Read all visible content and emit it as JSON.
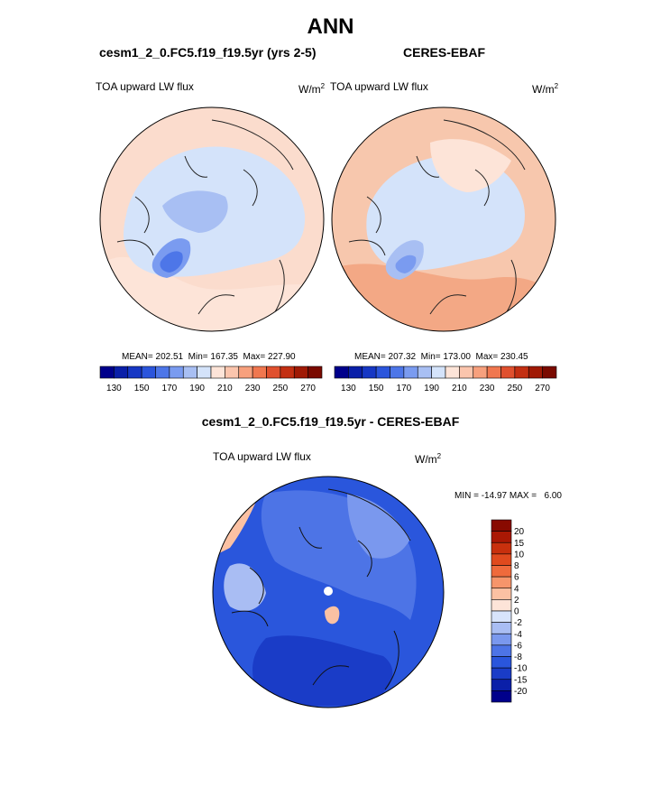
{
  "page": {
    "title": "ANN",
    "panel_left_title": "cesm1_2_0.FC5.f19_f19.5yr (yrs 2-5)",
    "panel_right_title": "CERES-EBAF",
    "panel_diff_title": "cesm1_2_0.FC5.f19_f19.5yr - CERES-EBAF"
  },
  "colors": {
    "seq_palette": [
      "#00008b",
      "#0a1fa8",
      "#1637c4",
      "#2b55dc",
      "#4d76e8",
      "#7a9bf0",
      "#a8bff3",
      "#d4e3fa",
      "#fde4d8",
      "#fbc5ad",
      "#f7a07d",
      "#f0774f",
      "#e0502e",
      "#c32f12",
      "#a01a05",
      "#7a0a00"
    ],
    "diff_palette": [
      "#00008b",
      "#0a1fa8",
      "#1a3cc7",
      "#2a56dc",
      "#4d74e6",
      "#7a98ee",
      "#a9bdf3",
      "#d8e4fb",
      "#fde4d8",
      "#fbc1a3",
      "#f6956b",
      "#ef6a3c",
      "#e04a1e",
      "#c8300d",
      "#aa1804",
      "#880a00"
    ],
    "map_bg_left": "#fbdccd",
    "map_bg_right": "#f7c7ad"
  },
  "chart_data": [
    {
      "type": "heatmap",
      "projection": "polar-stereographic-north",
      "panel_title": "cesm1_2_0.FC5.f19_f19.5yr (yrs 2-5)",
      "left_label": "TOA upward LW flux",
      "units_main": "W/m",
      "units_sup": "2",
      "stats_text": "MEAN= 202.51  Min= 167.35  Max= 227.90",
      "mean": 202.51,
      "min": 167.35,
      "max": 227.9,
      "colorbar_ticks": [
        "130",
        "150",
        "170",
        "190",
        "210",
        "230",
        "250",
        "270"
      ]
    },
    {
      "type": "heatmap",
      "projection": "polar-stereographic-north",
      "panel_title": "CERES-EBAF",
      "left_label": "TOA upward LW flux",
      "units_main": "W/m",
      "units_sup": "2",
      "stats_text": "MEAN= 207.32  Min= 173.00  Max= 230.45",
      "mean": 207.32,
      "min": 173.0,
      "max": 230.45,
      "colorbar_ticks": [
        "130",
        "150",
        "170",
        "190",
        "210",
        "230",
        "250",
        "270"
      ]
    },
    {
      "type": "heatmap",
      "projection": "polar-stereographic-north",
      "panel_title": "cesm1_2_0.FC5.f19_f19.5yr - CERES-EBAF",
      "left_label": "TOA upward LW flux",
      "units_main": "W/m",
      "units_sup": "2",
      "stats_text": "MIN = -14.97 MAX =   6.00",
      "min": -14.97,
      "max": 6.0,
      "colorbar_levels": [
        "20",
        "15",
        "10",
        "8",
        "6",
        "4",
        "2",
        "0",
        "-2",
        "-4",
        "-6",
        "-8",
        "-10",
        "-15",
        "-20"
      ]
    }
  ]
}
